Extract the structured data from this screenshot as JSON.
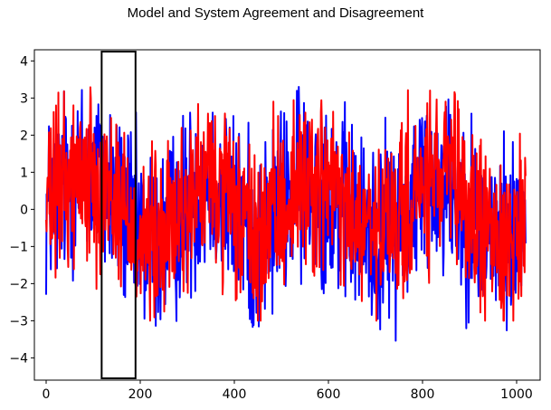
{
  "chart_data": {
    "type": "line",
    "title": "Model and System Agreement and Disagreement",
    "xlabel": "",
    "ylabel": "",
    "xlim": [
      -25,
      1050
    ],
    "ylim": [
      -4.6,
      4.3
    ],
    "xticks": [
      0,
      200,
      400,
      600,
      800,
      1000
    ],
    "yticks": [
      4,
      3,
      2,
      1,
      0,
      -1,
      -2,
      -3,
      -4
    ],
    "grid": false,
    "legend": "none",
    "n_points": 1020,
    "envelope": {
      "description_x": [
        0,
        50,
        100,
        150,
        200,
        250,
        300,
        350,
        400,
        450,
        500,
        550,
        600,
        650,
        700,
        750,
        800,
        850,
        900,
        950,
        1000,
        1020
      ],
      "trend": [
        0.0,
        0.9,
        1.0,
        0.3,
        -0.8,
        -0.9,
        0.2,
        0.8,
        -0.1,
        -0.9,
        0.1,
        0.8,
        0.6,
        -0.3,
        -0.8,
        -0.3,
        0.6,
        0.9,
        -0.1,
        -0.8,
        -0.6,
        0.0
      ]
    },
    "series": [
      {
        "color": "#0000ff",
        "noise_amp": 1.25,
        "min": -4.2,
        "max": 3.3
      },
      {
        "color": "#ff0000",
        "noise_amp": 1.15,
        "min": -3.0,
        "max": 3.8
      }
    ],
    "highlight_box": {
      "x_start": 118,
      "x_end": 190,
      "y_low": -4.6,
      "y_high": 4.3
    }
  }
}
